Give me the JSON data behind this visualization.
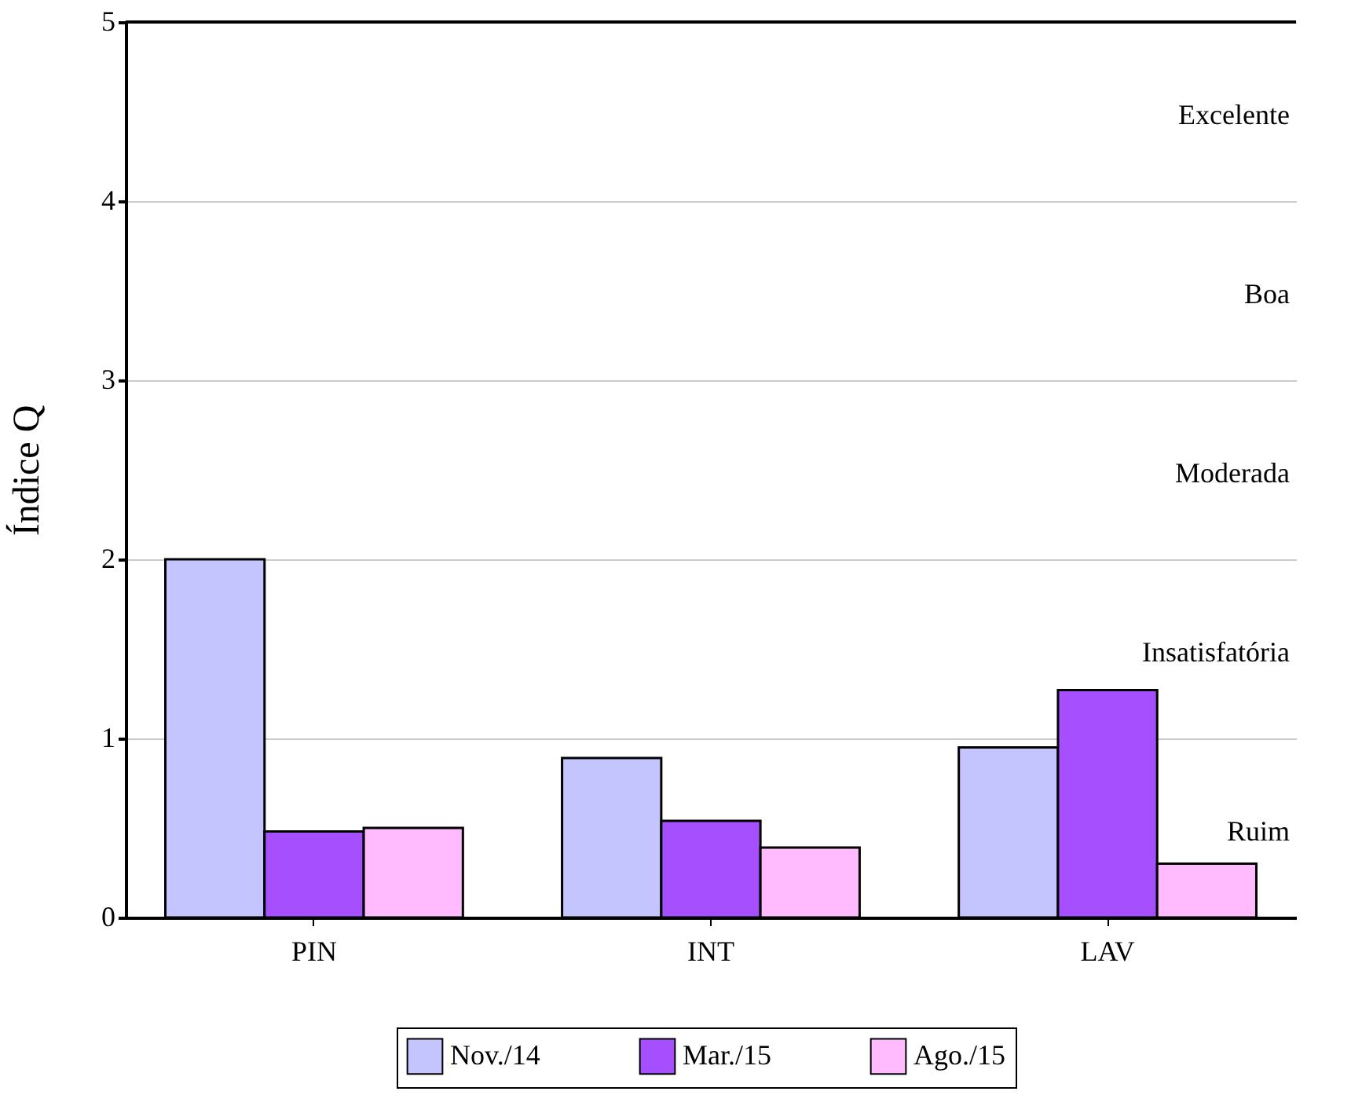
{
  "chart_data": {
    "type": "bar",
    "ylabel": "Índice Q",
    "categories": [
      "PIN",
      "INT",
      "LAV"
    ],
    "series": [
      {
        "name": "Nov./14",
        "color": "#c4c4fe",
        "values": [
          2.0,
          0.89,
          0.95
        ]
      },
      {
        "name": "Mar./15",
        "color": "#a64fff",
        "values": [
          0.48,
          0.54,
          1.27
        ]
      },
      {
        "name": "Ago./15",
        "color": "#ffbbfe",
        "values": [
          0.5,
          0.39,
          0.3
        ]
      }
    ],
    "ylim": [
      0,
      5
    ],
    "yticks": [
      0,
      1,
      2,
      3,
      4,
      5
    ],
    "grid": "y",
    "legend": "bottom",
    "annotations": [
      "Excelente",
      "Boa",
      "Moderada",
      "Insatisfatória",
      "Ruim"
    ]
  }
}
